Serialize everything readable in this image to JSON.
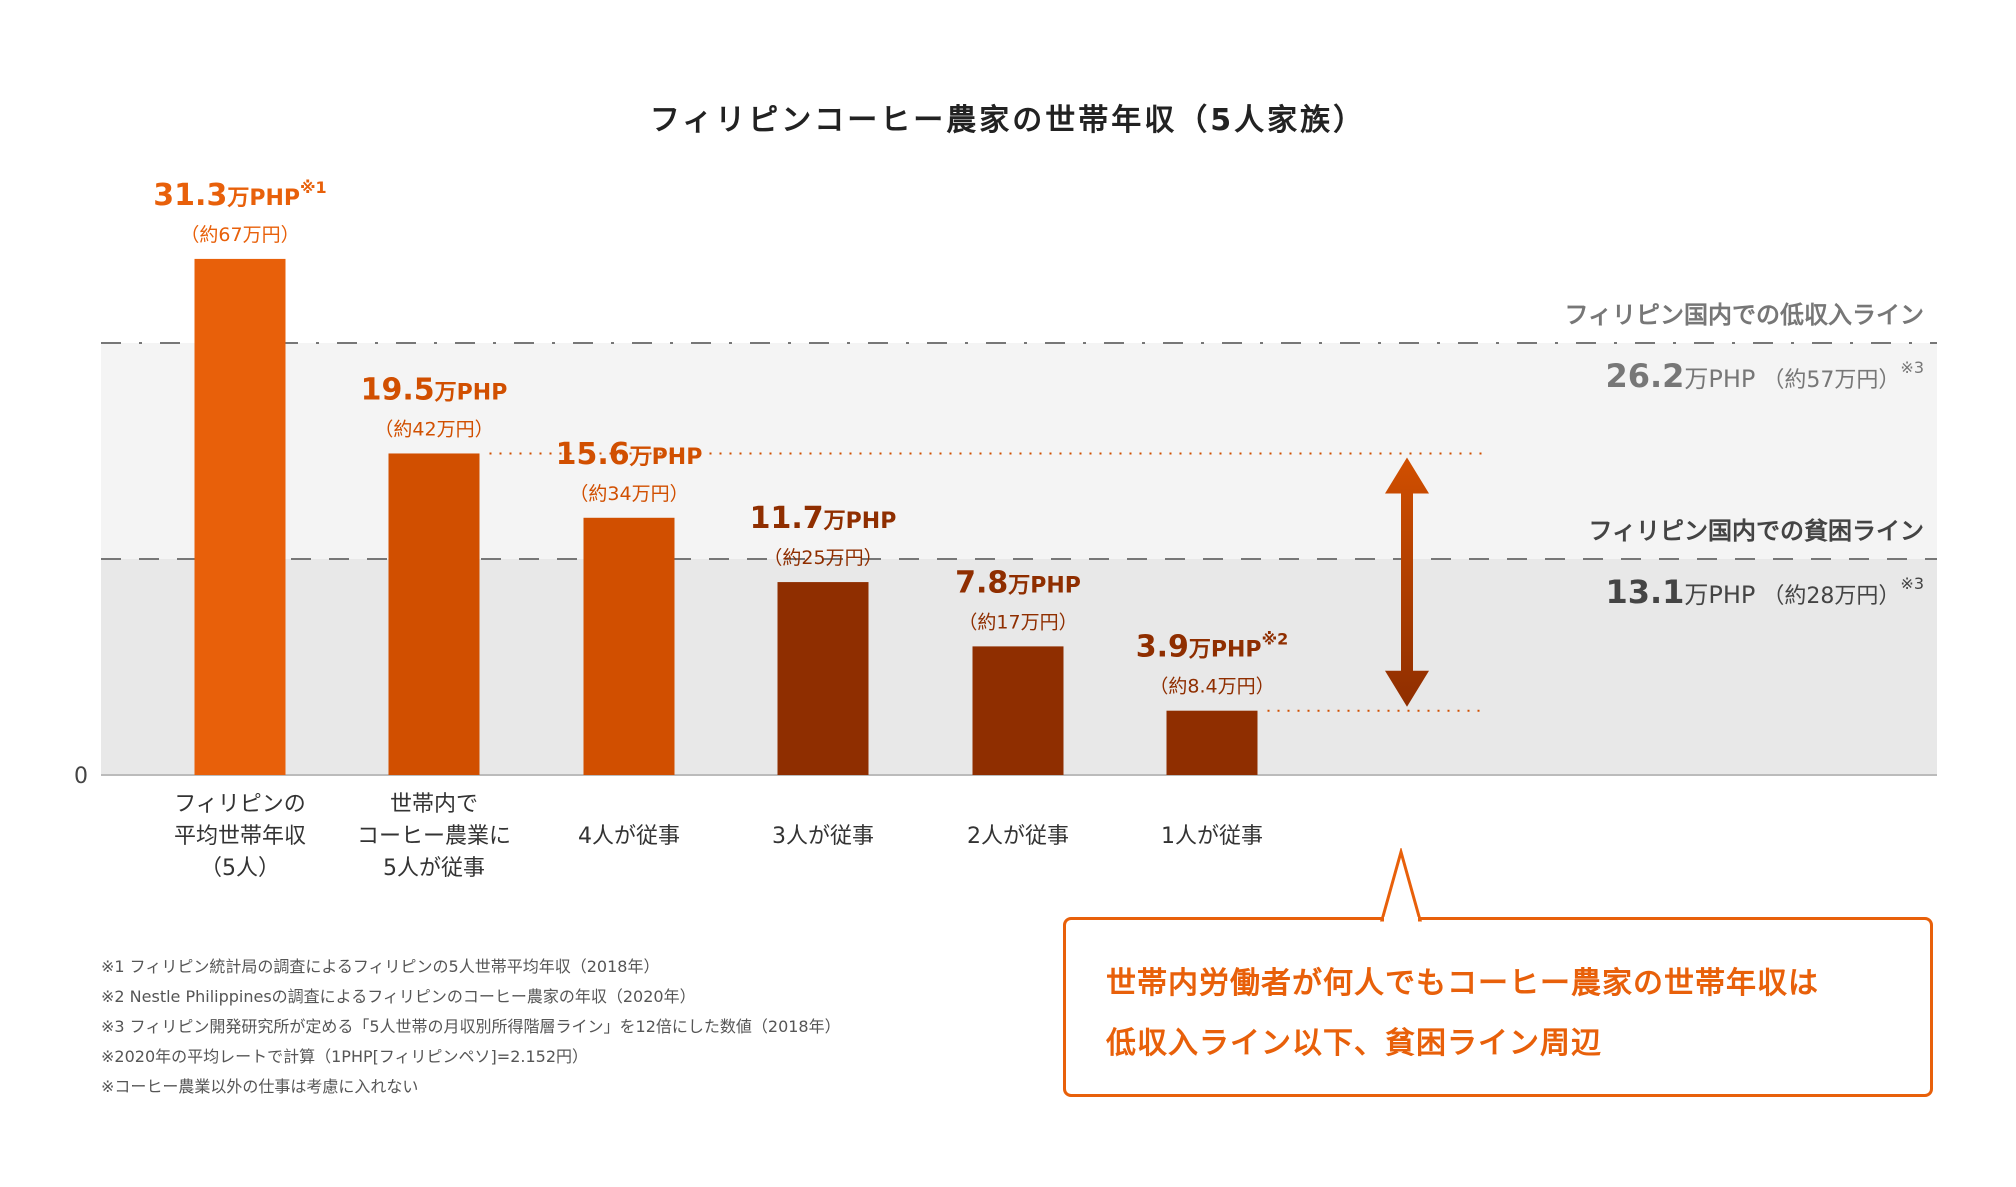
{
  "chart_data": {
    "type": "bar",
    "title": "フィリピンコーヒー農家の世帯年収（5人家族）",
    "unit": "万PHP",
    "categories": [
      [
        "フィリピンの",
        "平均世帯年収",
        "（5人）"
      ],
      [
        "世帯内で",
        "コーヒー農業に",
        "5人が従事"
      ],
      [
        "4人が従事"
      ],
      [
        "3人が従事"
      ],
      [
        "2人が従事"
      ],
      [
        "1人が従事"
      ]
    ],
    "values": [
      31.3,
      19.5,
      15.6,
      11.7,
      7.8,
      3.9
    ],
    "value_labels": [
      "31.3",
      "19.5",
      "15.6",
      "11.7",
      "7.8",
      "3.9"
    ],
    "notes": [
      "※1",
      "",
      "",
      "",
      "",
      "※2"
    ],
    "yen_labels": [
      "（約67万円）",
      "（約42万円）",
      "（約34万円）",
      "（約25万円）",
      "（約17万円）",
      "（約8.4万円）"
    ],
    "bar_colors": [
      "#e8600a",
      "#d14f00",
      "#d14f00",
      "#8f2e00",
      "#8f2e00",
      "#8f2e00"
    ],
    "ylim": [
      0,
      35
    ],
    "y_tick_labels": [
      "0"
    ],
    "reference_lines": [
      {
        "label": "フィリピン国内での低収入ライン",
        "value": 26.2,
        "value_label": "26.2",
        "unit": "万PHP",
        "yen": "（約57万円）",
        "note": "※3",
        "style": "dash-dot"
      },
      {
        "label": "フィリピン国内での貧困ライン",
        "value": 13.1,
        "value_label": "13.1",
        "unit": "万PHP",
        "yen": "（約28万円）",
        "note": "※3",
        "style": "dashed"
      }
    ],
    "band_colors": [
      "#f4f4f4",
      "#e8e8e8"
    ],
    "range_arrow": {
      "from": 3.9,
      "to": 19.5
    }
  },
  "callout": {
    "lines": [
      "世帯内労働者が何人でもコーヒー農家の世帯年収は",
      "低収入ライン以下、貧困ライン周辺"
    ]
  },
  "footnotes": [
    "※1 フィリピン統計局の調査によるフィリピンの5人世帯平均年収（2018年）",
    "※2 Nestle Philippinesの調査によるフィリピンのコーヒー農家の年収（2020年）",
    "※3 フィリピン開発研究所が定める「5人世帯の月収別所得階層ライン」を12倍にした数値（2018年）",
    "※2020年の平均レートで計算（1PHP[フィリピンペソ]=2.152円）",
    "※コーヒー農業以外の仕事は考慮に入れない"
  ]
}
